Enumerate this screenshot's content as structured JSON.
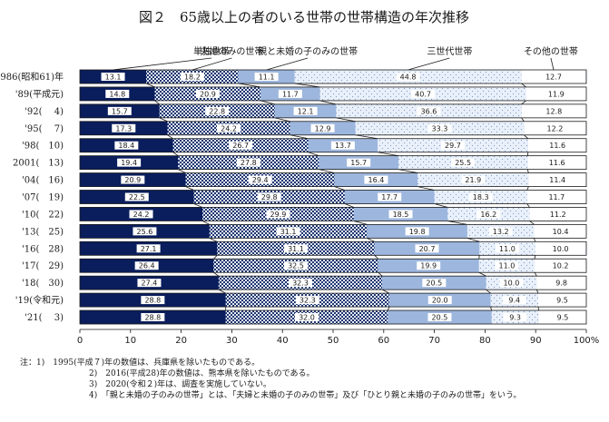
{
  "chart_data": {
    "type": "bar",
    "orientation": "horizontal",
    "stacked": true,
    "title": "図２　65歳以上の者のいる世帯の世帯構造の年次推移",
    "categories": [
      "1986(昭和61)年",
      "'89(平成元)",
      "'92(　 4)",
      "'95(　 7)",
      "'98(　10)",
      "2001(　13)",
      "'04(　16)",
      "'07(　19)",
      "'10(　22)",
      "'13(　25)",
      "'16(　28)",
      "'17(　29)",
      "'18(　30)",
      "'19(令和元)",
      "'21(　 3)"
    ],
    "series": [
      {
        "name": "単独世帯",
        "values": [
          13.1,
          14.8,
          15.7,
          17.3,
          18.4,
          19.4,
          20.9,
          22.5,
          24.2,
          25.6,
          27.1,
          26.4,
          27.4,
          28.8,
          28.8
        ]
      },
      {
        "name": "夫婦のみの世帯",
        "values": [
          18.2,
          20.9,
          22.8,
          24.2,
          26.7,
          27.8,
          29.4,
          29.8,
          29.9,
          31.1,
          31.1,
          32.5,
          32.3,
          32.3,
          32.0
        ]
      },
      {
        "name": "親と未婚の子のみの世帯",
        "values": [
          11.1,
          11.7,
          12.1,
          12.9,
          13.7,
          15.7,
          16.4,
          17.7,
          18.5,
          19.8,
          20.7,
          19.9,
          20.5,
          20.0,
          20.5
        ]
      },
      {
        "name": "三世代世帯",
        "values": [
          44.8,
          40.7,
          36.6,
          33.3,
          29.7,
          25.5,
          21.9,
          18.3,
          16.2,
          13.2,
          11.0,
          11.0,
          10.0,
          9.4,
          9.3
        ]
      },
      {
        "name": "その他の世帯",
        "values": [
          12.7,
          11.9,
          12.8,
          12.2,
          11.6,
          11.6,
          11.4,
          11.7,
          11.2,
          10.4,
          10.0,
          10.2,
          9.8,
          9.5,
          9.5
        ]
      }
    ],
    "xlim": [
      0,
      100
    ],
    "xticks": [
      "0",
      "10",
      "20",
      "30",
      "40",
      "50",
      "60",
      "70",
      "80",
      "90",
      "100%"
    ],
    "colors": {
      "bar_bg": "#9db6dd",
      "s0": "#0a1d5c",
      "s1_a": "#1e3570",
      "s1_b": "#e6ecf5",
      "s2": "#9db6dd",
      "s3": "#e9f0fa",
      "s3_dot": "#7f9cc8",
      "s4": "#ffffff",
      "outline": "#1a1a1a"
    },
    "notes": [
      "注：1)　1995(平成７)年の数値は、兵庫県を除いたものである。",
      "2)　2016(平成28)年の数値は、熊本県を除いたものである。",
      "3)　2020(令和２)年は、調査を実施していない。",
      "4)　「親と未婚の子のみの世帯」とは、「夫婦と未婚の子のみの世帯」及び「ひとり親と未婚の子のみの世帯」をいう。"
    ]
  }
}
